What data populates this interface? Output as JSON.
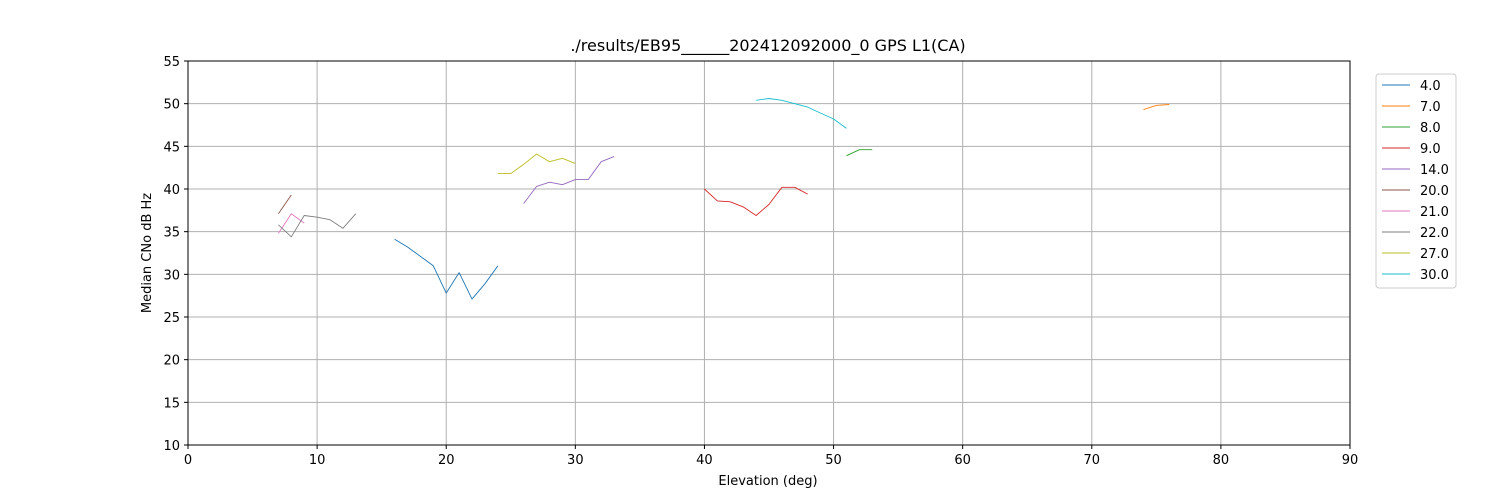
{
  "chart_data": {
    "type": "line",
    "title": "./results/EB95______202412092000_0 GPS L1(CA)",
    "xlabel": "Elevation (deg)",
    "ylabel": "Median CNo dB Hz",
    "xlim": [
      0,
      90
    ],
    "ylim": [
      10,
      55
    ],
    "xticks": [
      0,
      10,
      20,
      30,
      40,
      50,
      60,
      70,
      80,
      90
    ],
    "yticks": [
      10,
      15,
      20,
      25,
      30,
      35,
      40,
      45,
      50,
      55
    ],
    "grid": true,
    "legend_position": "right",
    "series": [
      {
        "name": "4.0",
        "color": "#1f77b4",
        "x": [
          16,
          17,
          18,
          19,
          20,
          21,
          22,
          23,
          24
        ],
        "y": [
          34.1,
          33.2,
          32.1,
          31.0,
          27.8,
          30.2,
          27.1,
          28.9,
          31.0
        ]
      },
      {
        "name": "7.0",
        "color": "#ff7f0e",
        "x": [
          74,
          75,
          76
        ],
        "y": [
          49.3,
          49.8,
          49.9
        ]
      },
      {
        "name": "8.0",
        "color": "#2ca02c",
        "x": [
          51,
          52,
          53
        ],
        "y": [
          43.9,
          44.6,
          44.6
        ]
      },
      {
        "name": "9.0",
        "color": "#d62728",
        "x": [
          40,
          41,
          42,
          43,
          44,
          45,
          46,
          47,
          48
        ],
        "y": [
          40.0,
          38.6,
          38.5,
          37.9,
          36.9,
          38.2,
          40.2,
          40.2,
          39.4
        ]
      },
      {
        "name": "14.0",
        "color": "#9467bd",
        "x": [
          26,
          27,
          28,
          29,
          30,
          31,
          32,
          33
        ],
        "y": [
          38.3,
          40.3,
          40.8,
          40.5,
          41.1,
          41.1,
          43.2,
          43.8
        ]
      },
      {
        "name": "20.0",
        "color": "#8c564b",
        "x": [
          7,
          8
        ],
        "y": [
          37.1,
          39.3
        ]
      },
      {
        "name": "21.0",
        "color": "#e377c2",
        "x": [
          7,
          8,
          9
        ],
        "y": [
          34.8,
          37.1,
          36.0
        ]
      },
      {
        "name": "22.0",
        "color": "#7f7f7f",
        "x": [
          7,
          8,
          9,
          10,
          11,
          12,
          13
        ],
        "y": [
          35.8,
          34.4,
          36.9,
          36.7,
          36.4,
          35.4,
          37.1
        ]
      },
      {
        "name": "27.0",
        "color": "#bcbd22",
        "x": [
          24,
          25,
          26,
          27,
          28,
          29,
          30
        ],
        "y": [
          41.8,
          41.8,
          42.9,
          44.1,
          43.2,
          43.6,
          43.0
        ]
      },
      {
        "name": "30.0",
        "color": "#17becf",
        "x": [
          44,
          45,
          46,
          47,
          48,
          49,
          50,
          51
        ],
        "y": [
          50.4,
          50.6,
          50.4,
          50.0,
          49.6,
          48.9,
          48.2,
          47.1
        ]
      }
    ]
  }
}
